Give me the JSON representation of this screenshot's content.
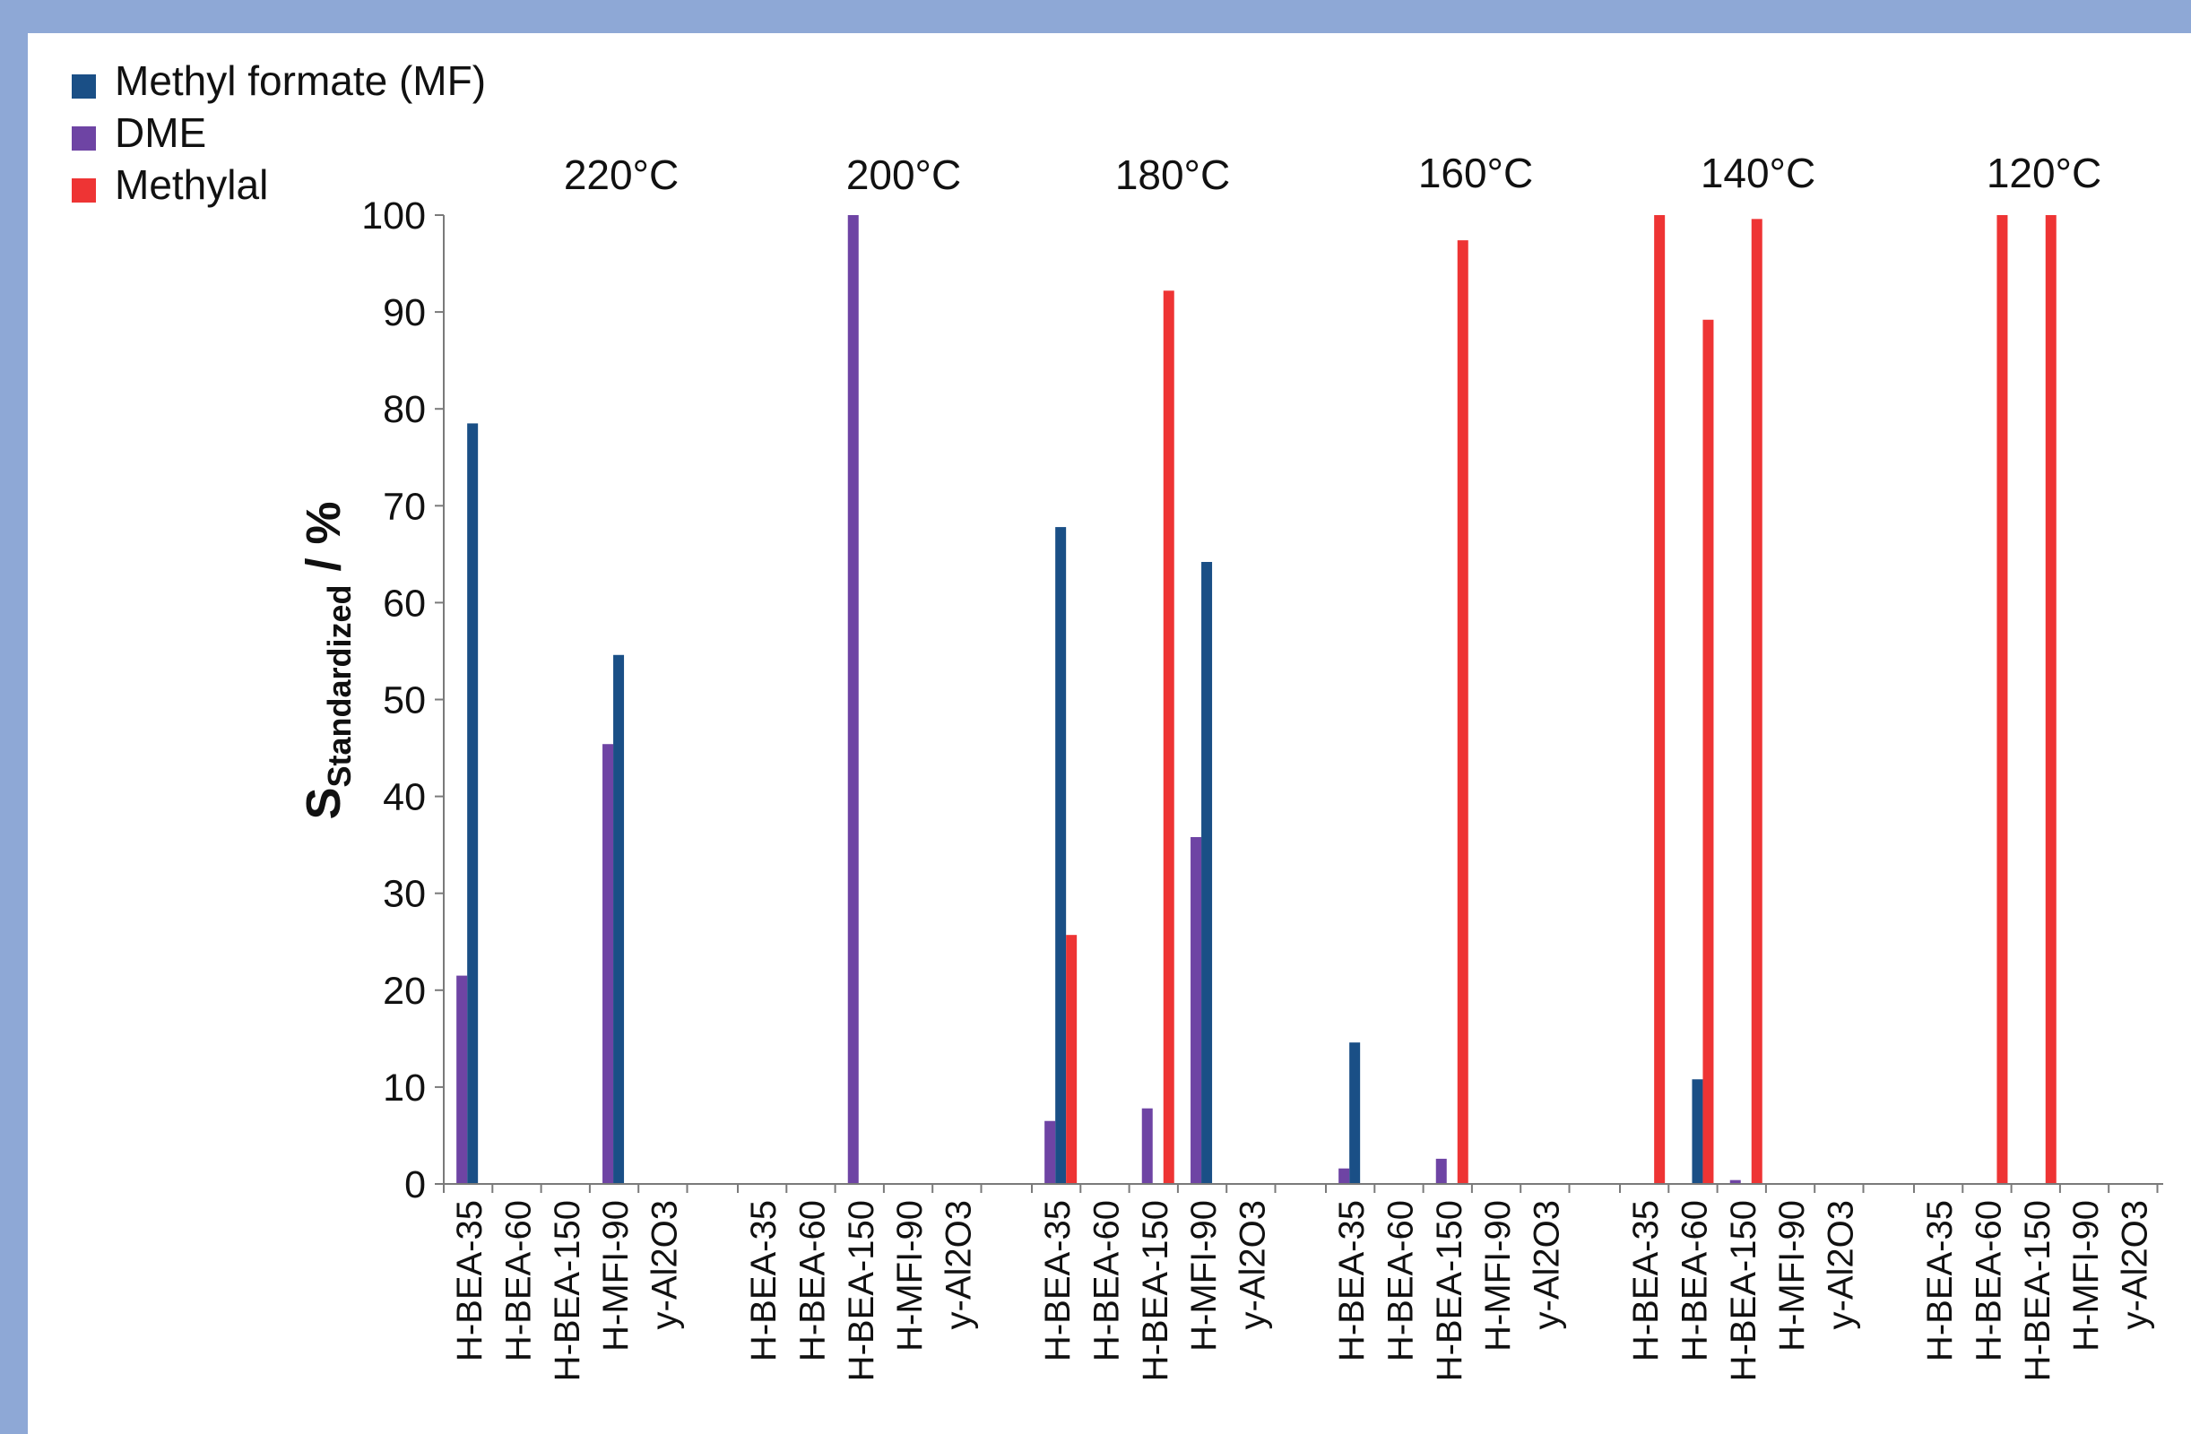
{
  "chart_data": {
    "type": "bar",
    "ylabel": "S",
    "ylabel_sub": "Standardized",
    "ylabel_unit": " / %",
    "ylim": [
      0,
      100
    ],
    "yticks": [
      0,
      10,
      20,
      30,
      40,
      50,
      60,
      70,
      80,
      90,
      100
    ],
    "legend_position": "top-left",
    "grid": false,
    "groups": [
      "220°C",
      "200°C",
      "180°C",
      "160°C",
      "140°C",
      "120°C"
    ],
    "catalysts": [
      "H-BEA-35",
      "H-BEA-60",
      "H-BEA-150",
      "H-MFI-90",
      "y-Al2O3"
    ],
    "series": [
      {
        "name": "Methyl  formate (MF)",
        "color": "#1a4f86",
        "values": [
          [
            78.5,
            0,
            0,
            54.6,
            0
          ],
          [
            0,
            0,
            0,
            0,
            0
          ],
          [
            67.8,
            0,
            0,
            64.2,
            0
          ],
          [
            14.6,
            0,
            0,
            0,
            0
          ],
          [
            0,
            10.8,
            0,
            0,
            0
          ],
          [
            0,
            0,
            0,
            0,
            0
          ]
        ]
      },
      {
        "name": "DME",
        "color": "#6e44a4",
        "values": [
          [
            21.5,
            0,
            0,
            45.4,
            0
          ],
          [
            0,
            0,
            100,
            0,
            0
          ],
          [
            6.5,
            0,
            7.8,
            35.8,
            0
          ],
          [
            1.6,
            0,
            2.6,
            0,
            0
          ],
          [
            0,
            0,
            0.4,
            0,
            0
          ],
          [
            0,
            0,
            0,
            0,
            0
          ]
        ]
      },
      {
        "name": "Methylal",
        "color": "#ee3434",
        "values": [
          [
            0,
            0,
            0,
            0,
            0
          ],
          [
            0,
            0,
            0,
            0,
            0
          ],
          [
            25.7,
            0,
            92.2,
            0,
            0
          ],
          [
            0,
            0,
            97.4,
            0,
            0
          ],
          [
            100,
            89.2,
            99.6,
            0,
            0
          ],
          [
            0,
            100,
            100,
            0,
            0
          ]
        ]
      }
    ]
  }
}
